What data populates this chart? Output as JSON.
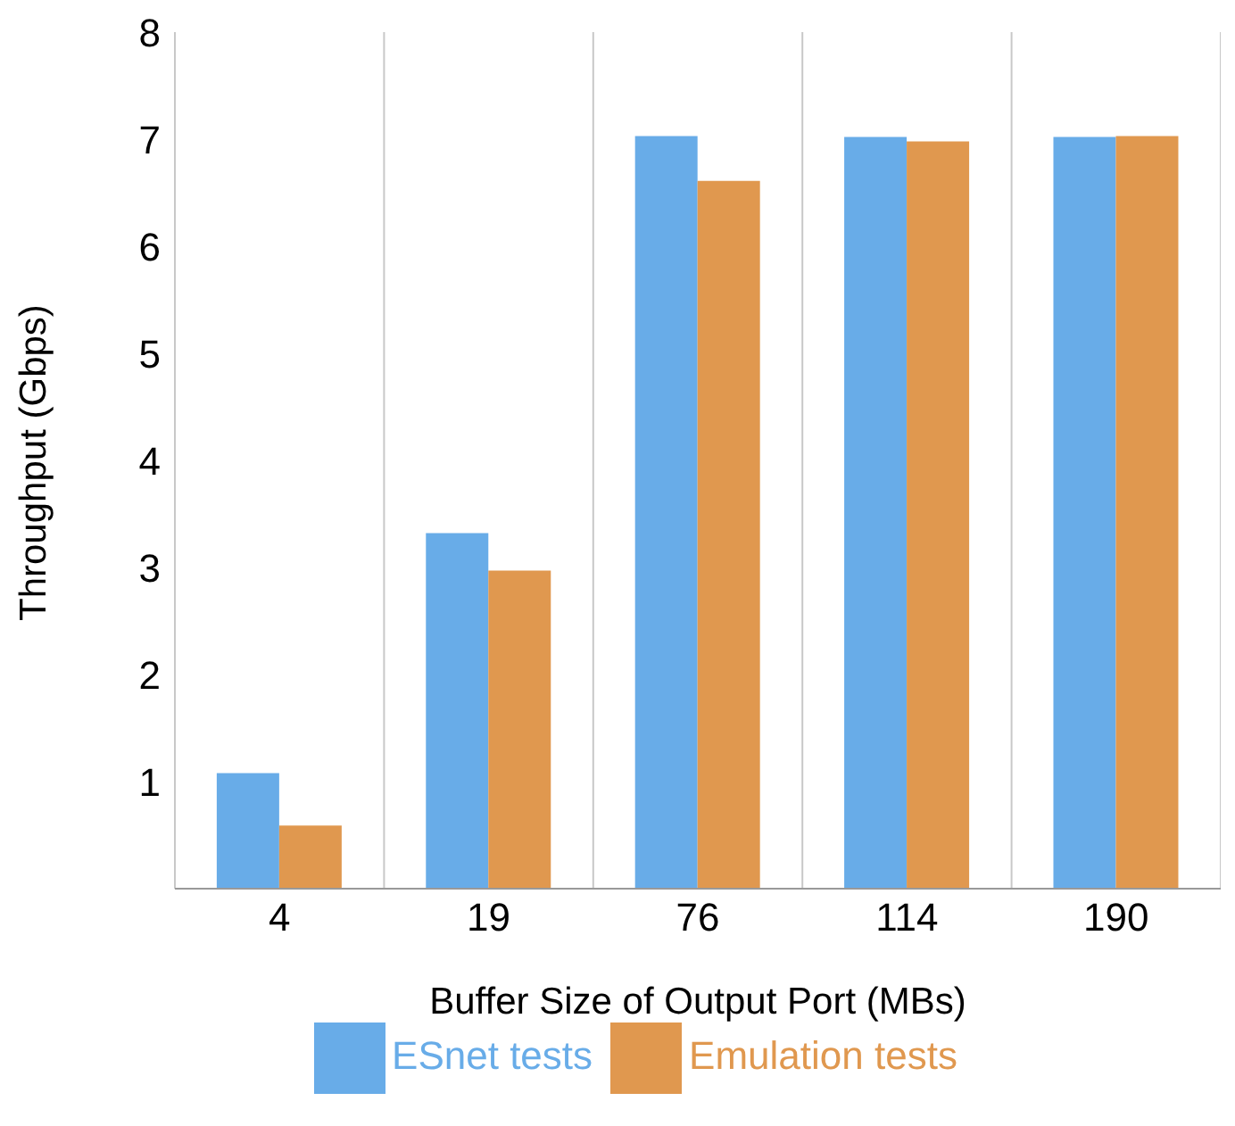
{
  "chart_data": {
    "type": "bar",
    "xlabel": "Buffer Size of Output Port (MBs)",
    "ylabel": "Throughput (Gbps)",
    "categories": [
      "4",
      "19",
      "76",
      "114",
      "190"
    ],
    "series": [
      {
        "name": "ESnet tests",
        "color": "#68ace8",
        "values": [
          1.08,
          3.32,
          7.03,
          7.02,
          7.02
        ]
      },
      {
        "name": "Emulation tests",
        "color": "#e0984f",
        "values": [
          0.59,
          2.97,
          6.61,
          6.98,
          7.03
        ]
      }
    ],
    "ylim": [
      0,
      8
    ],
    "yticks": [
      {
        "value": 0,
        "label": null
      },
      1,
      2,
      3,
      4,
      5,
      6,
      7,
      8
    ],
    "grid": "x",
    "legend": "bottom"
  }
}
